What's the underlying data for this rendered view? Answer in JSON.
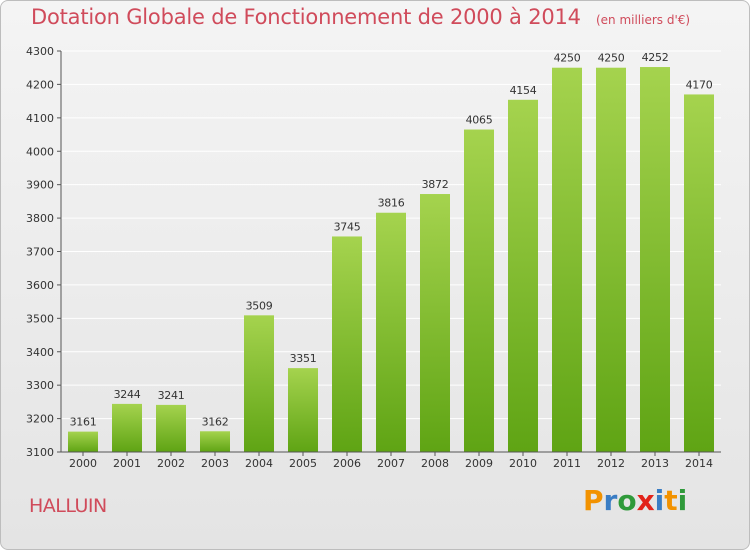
{
  "header": {
    "title": "Dotation Globale de Fonctionnement de 2000 à 2014",
    "unit": "(en milliers d'€)"
  },
  "commune": "HALLUIN",
  "logo": {
    "text": "Proxiti",
    "colors": [
      "#f29200",
      "#3a7dc4",
      "#2f9a3a",
      "#e2231a",
      "#3a7dc4",
      "#f29200",
      "#2f9a3a"
    ]
  },
  "colors": {
    "bar_top": "#a5d34e",
    "bar_bottom": "#5fa414",
    "accent": "#d04b5b",
    "grid": "#ffffff"
  },
  "chart_data": {
    "type": "bar",
    "title": "Dotation Globale de Fonctionnement de 2000 à 2014",
    "subtitle": "(en milliers d'€)",
    "xlabel": "",
    "ylabel": "",
    "categories": [
      "2000",
      "2001",
      "2002",
      "2003",
      "2004",
      "2005",
      "2006",
      "2007",
      "2008",
      "2009",
      "2010",
      "2011",
      "2012",
      "2013",
      "2014"
    ],
    "values": [
      3161,
      3244,
      3241,
      3162,
      3509,
      3351,
      3745,
      3816,
      3872,
      4065,
      4154,
      4250,
      4250,
      4252,
      4170
    ],
    "ylim": [
      3100,
      4300
    ],
    "yticks": [
      3100,
      3200,
      3300,
      3400,
      3500,
      3600,
      3700,
      3800,
      3900,
      4000,
      4100,
      4200,
      4300
    ],
    "grid": true,
    "data_labels": true
  }
}
